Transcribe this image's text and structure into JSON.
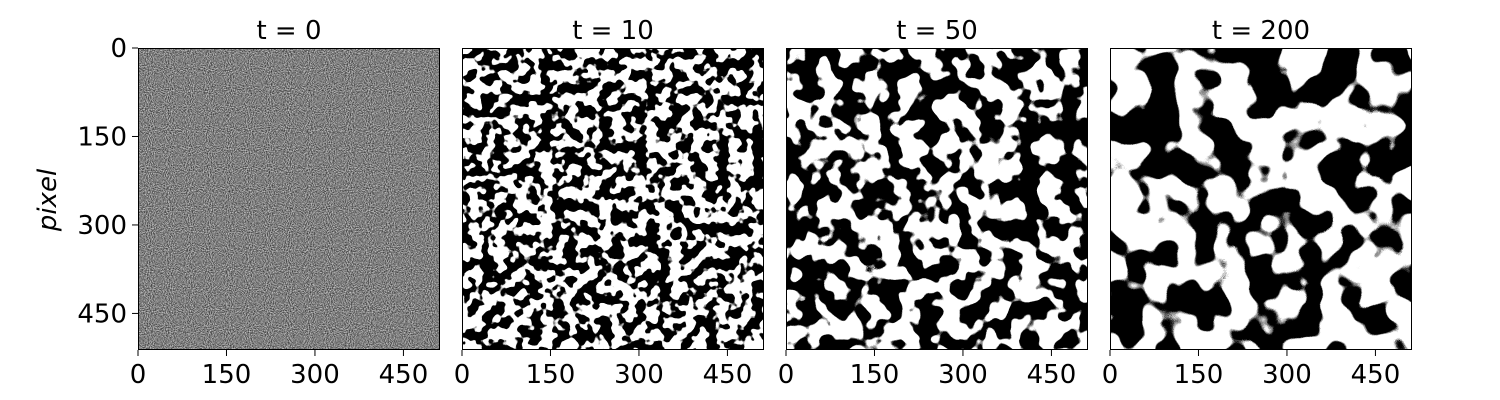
{
  "chart_data": {
    "type": "heatmap",
    "colormap": "gray",
    "ylabel": "pixel",
    "panels": [
      {
        "title": "t = 0",
        "t": 0,
        "pattern": "random noise"
      },
      {
        "title": "t = 10",
        "t": 10,
        "pattern": "fine domains"
      },
      {
        "title": "t = 50",
        "t": 50,
        "pattern": "medium domains"
      },
      {
        "title": "t = 200",
        "t": 200,
        "pattern": "coarse domains"
      }
    ],
    "xticks": [
      "0",
      "150",
      "300",
      "450"
    ],
    "yticks": [
      "0",
      "150",
      "300",
      "450"
    ],
    "xlim": [
      0,
      512
    ],
    "ylim": [
      512,
      0
    ],
    "tick_values": [
      0,
      150,
      300,
      450
    ],
    "colors": {
      "low": "#000000",
      "high": "#ffffff"
    }
  }
}
